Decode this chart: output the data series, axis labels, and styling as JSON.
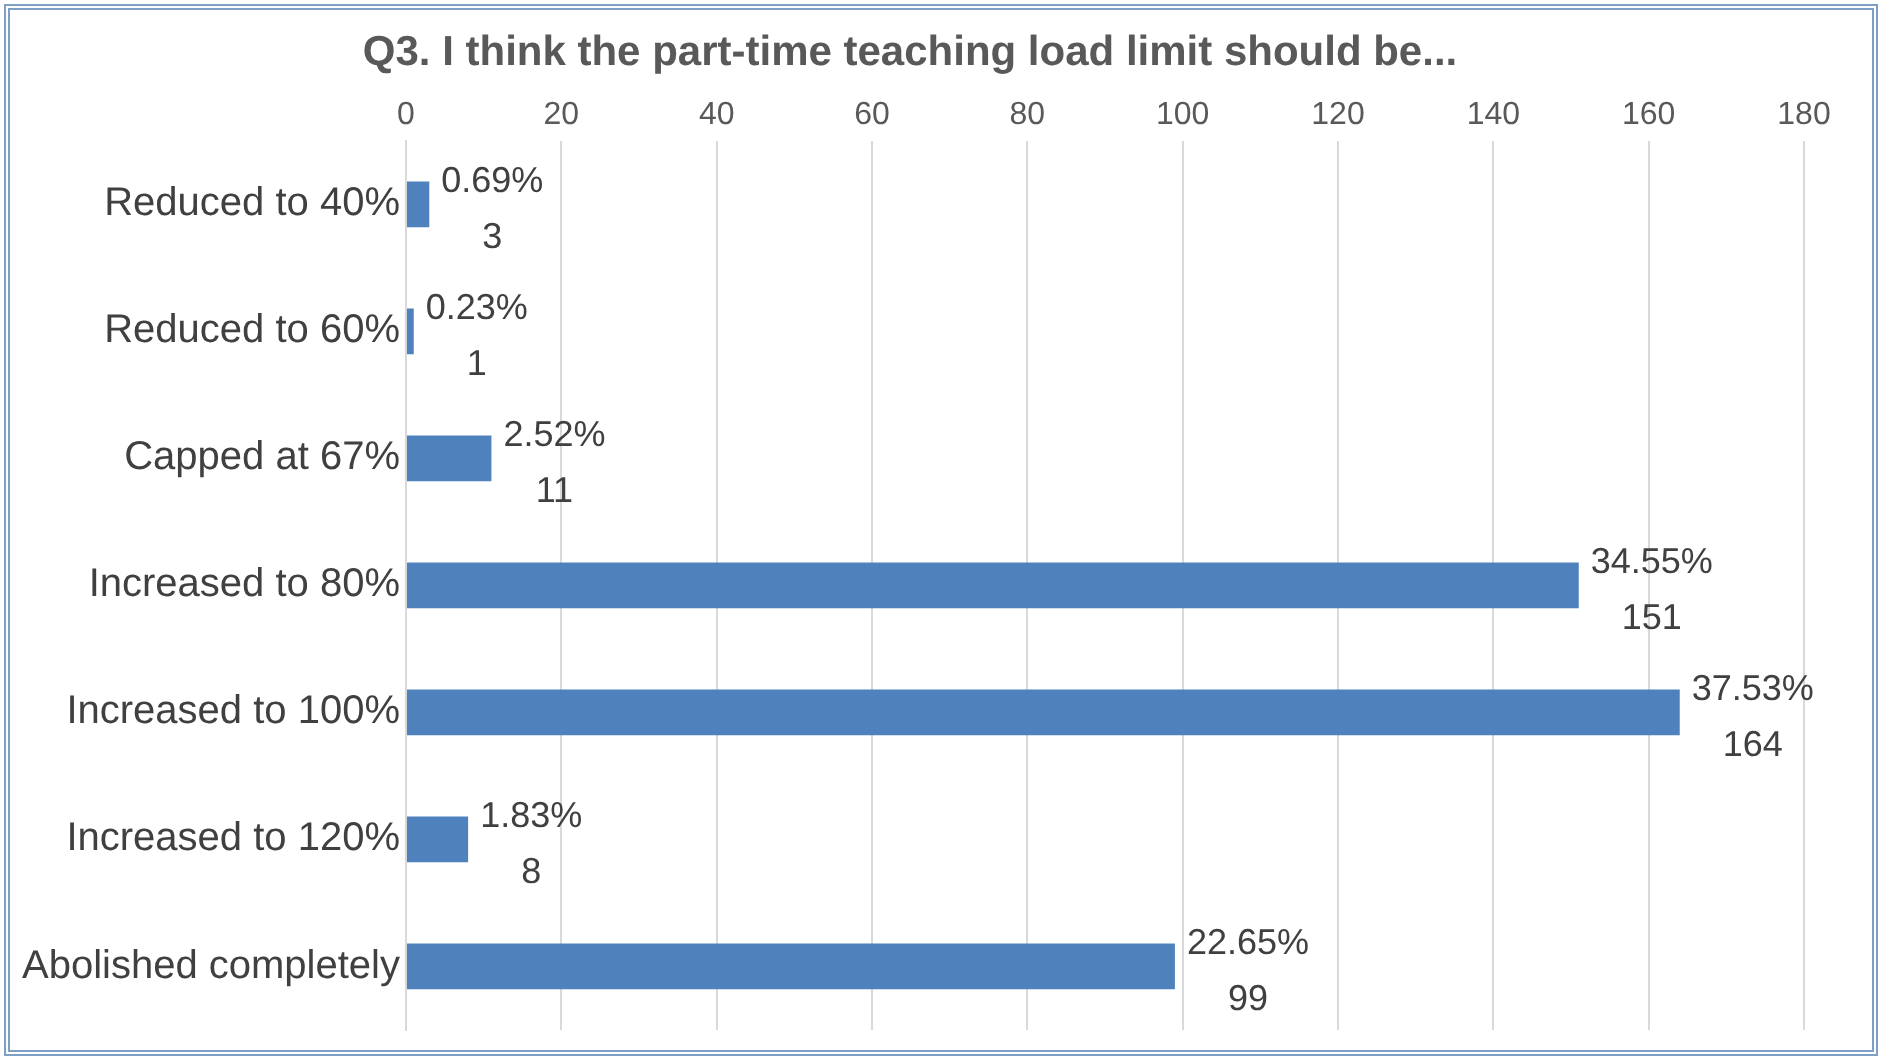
{
  "chart_data": {
    "type": "bar",
    "orientation": "horizontal",
    "title": "Q3. I think the part-time teaching load limit should be...",
    "categories": [
      "Reduced to 40%",
      "Reduced to 60%",
      "Capped at 67%",
      "Increased to 80%",
      "Increased to 100%",
      "Increased to 120%",
      "Abolished completely"
    ],
    "values": [
      3,
      1,
      11,
      151,
      164,
      8,
      99
    ],
    "value_labels": [
      "0.69%\n3",
      "0.23%\n1",
      "2.52%\n11",
      "34.55%\n151",
      "37.53%\n164",
      "1.83%\n8",
      "22.65%\n99"
    ],
    "color": "#4f81bd",
    "xlim": [
      0,
      180
    ],
    "xticks": [
      0,
      20,
      40,
      60,
      80,
      100,
      120,
      140,
      160,
      180
    ],
    "grid": "x",
    "legend": false
  }
}
